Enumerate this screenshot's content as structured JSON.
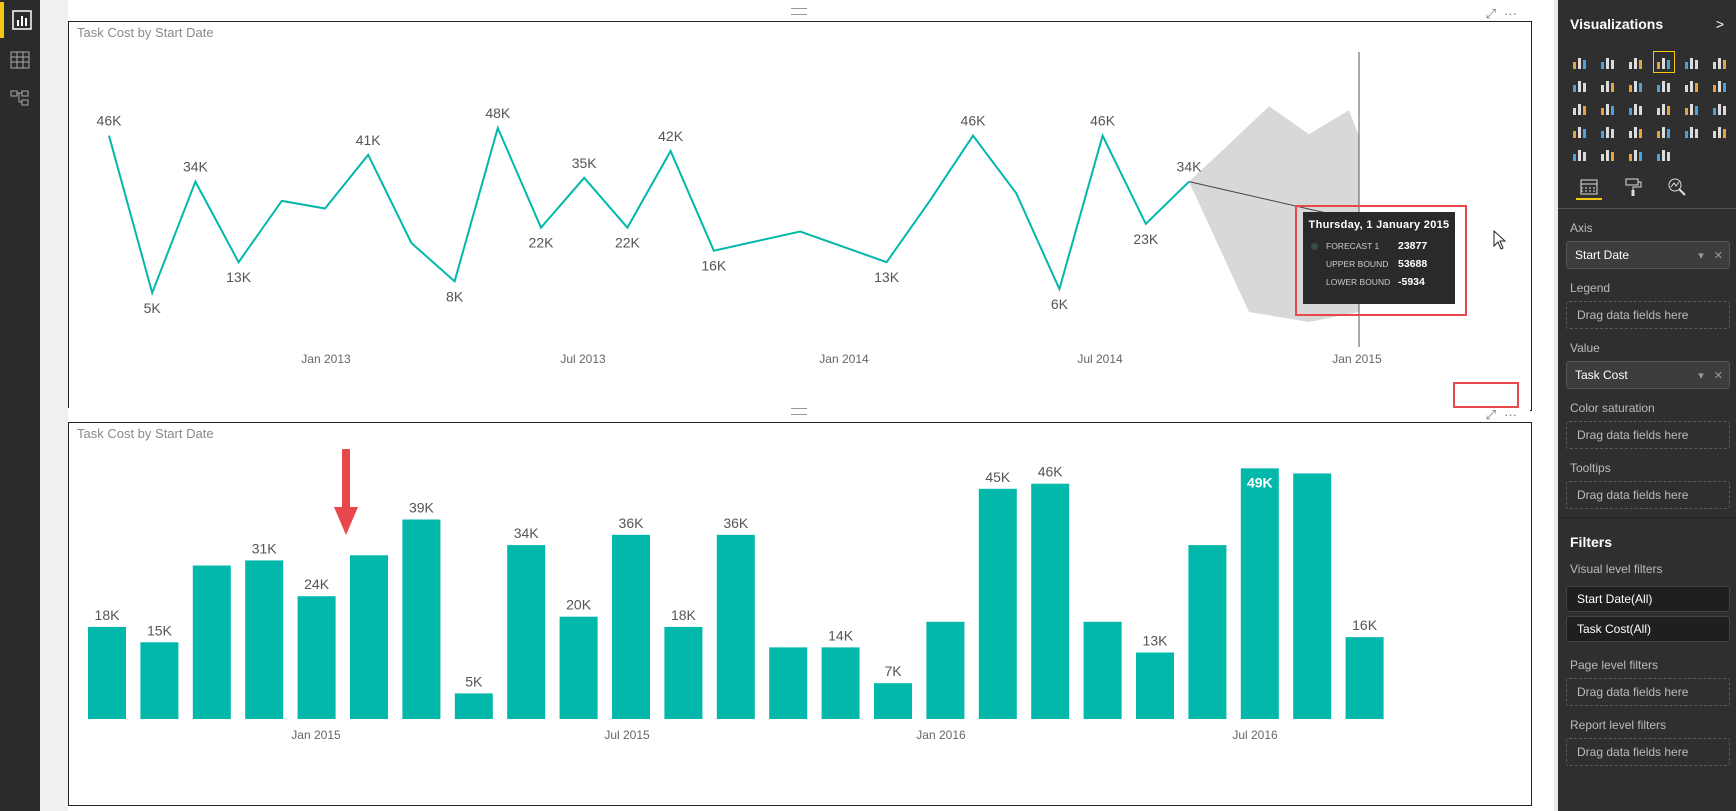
{
  "colors": {
    "accent": "#01b8aa",
    "brand": "#f2c811",
    "highlight": "#e8474b",
    "forecast_band": "#d7d8d8"
  },
  "left_nav": [
    {
      "name": "report-view",
      "icon": "bar-chart-icon"
    },
    {
      "name": "data-view",
      "icon": "table-icon"
    },
    {
      "name": "relationships-view",
      "icon": "relationships-icon"
    }
  ],
  "visual_top": {
    "title": "Task Cost by Start Date",
    "tooltip": {
      "date": "Thursday, 1 January 2015",
      "rows": [
        {
          "label": "FORECAST 1",
          "value": "23877"
        },
        {
          "label": "UPPER BOUND",
          "value": "53688"
        },
        {
          "label": "LOWER BOUND",
          "value": "-5934"
        }
      ]
    },
    "highlighted_axis_label": "Jan 2015"
  },
  "visual_bottom": {
    "title": "Task Cost by Start Date"
  },
  "chart_data": [
    {
      "type": "line",
      "title": "Task Cost by Start Date",
      "values": [
        46,
        5,
        34,
        13,
        29,
        27,
        41,
        18,
        8,
        48,
        22,
        35,
        22,
        42,
        16,
        null,
        21,
        null,
        13,
        29,
        46,
        31,
        6,
        46,
        23,
        34
      ],
      "labels": [
        "46K",
        "5K",
        "34K",
        "13K",
        "",
        "",
        "41K",
        "",
        "8K",
        "48K",
        "22K",
        "35K",
        "22K",
        "42K",
        "16K",
        "",
        "",
        "",
        "13K",
        "",
        "46K",
        "",
        "6K",
        "46K",
        "23K",
        "34K"
      ],
      "x_ticks": [
        "Jan 2013",
        "Jul 2013",
        "Jan 2014",
        "Jul 2014",
        "Jan 2015"
      ],
      "ylim": [
        0,
        60
      ],
      "forecast": {
        "value": 23877,
        "upper": 53688,
        "lower": -5934
      }
    },
    {
      "type": "bar",
      "title": "Task Cost by Start Date",
      "values": [
        18,
        15,
        30,
        31,
        24,
        32,
        39,
        5,
        34,
        20,
        36,
        18,
        36,
        14,
        14,
        7,
        19,
        45,
        46,
        19,
        13,
        34,
        49,
        48,
        16
      ],
      "labels": [
        "18K",
        "15K",
        "",
        "31K",
        "24K",
        "",
        "39K",
        "5K",
        "34K",
        "20K",
        "36K",
        "18K",
        "36K",
        "",
        "14K",
        "7K",
        "",
        "45K",
        "46K",
        "",
        "13K",
        "",
        "49K",
        "",
        "16K"
      ],
      "x_ticks": [
        "Jan 2015",
        "Jul 2015",
        "Jan 2016",
        "Jul 2016"
      ],
      "ylim": [
        0,
        52
      ]
    }
  ],
  "pane": {
    "title": "Visualizations",
    "viz_icons": [
      "stacked-bar-icon",
      "stacked-column-icon",
      "clustered-bar-icon",
      "clustered-column-icon",
      "100-bar-icon",
      "100-column-icon",
      "line-icon",
      "area-icon",
      "stacked-area-icon",
      "line-column-icon",
      "line-column2-icon",
      "ribbon-icon",
      "waterfall-icon",
      "scatter-icon",
      "pie-icon",
      "treemap-icon",
      "map-icon",
      "table-viz-icon",
      "matrix-icon",
      "funnel-icon",
      "gauge-icon",
      "card-icon",
      "kpi-icon",
      "slicer-icon",
      "donut-icon",
      "filled-map-icon",
      "multirow-card-icon",
      "r-visual-icon",
      "shape-map-icon",
      "globe-icon",
      "custom-icon",
      "more-icon"
    ],
    "axis_label": "Axis",
    "axis_field": "Start Date",
    "legend_label": "Legend",
    "value_label": "Value",
    "value_field": "Task Cost",
    "color_sat_label": "Color saturation",
    "tooltips_label": "Tooltips",
    "drag_text": "Drag data fields here",
    "filters_title": "Filters",
    "visual_filters_label": "Visual level filters",
    "filter_items": [
      "Start Date(All)",
      "Task Cost(All)"
    ],
    "page_filters_label": "Page level filters",
    "report_filters_label": "Report level filters"
  }
}
